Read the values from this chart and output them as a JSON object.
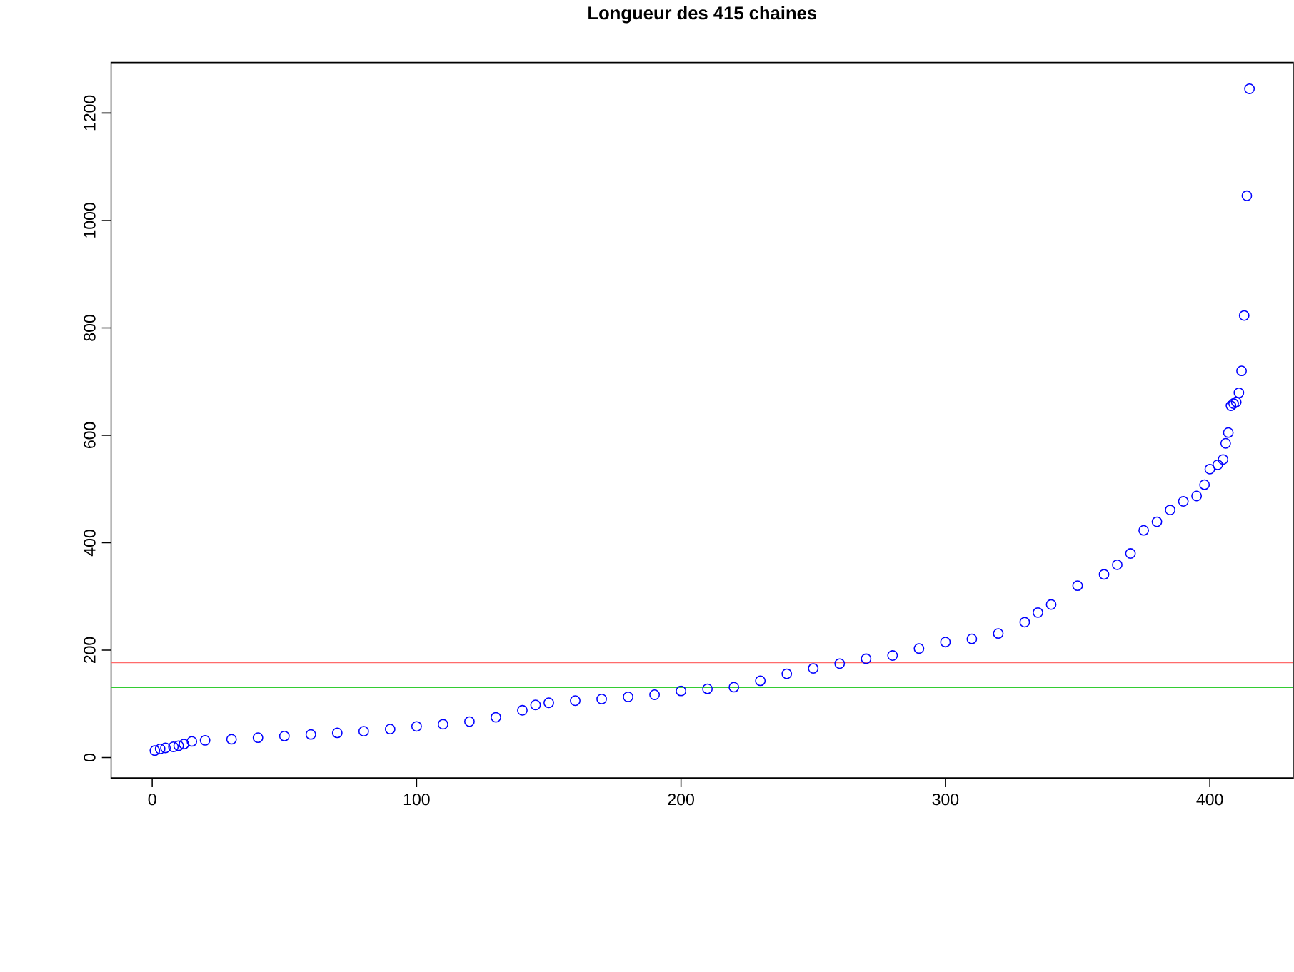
{
  "chart_data": {
    "type": "scatter",
    "title": "Longueur des 415 chaines",
    "x": [
      1,
      3,
      5,
      8,
      10,
      12,
      15,
      20,
      30,
      40,
      50,
      60,
      70,
      80,
      90,
      100,
      110,
      120,
      130,
      140,
      145,
      150,
      160,
      170,
      180,
      190,
      200,
      210,
      220,
      230,
      240,
      250,
      260,
      270,
      280,
      290,
      300,
      310,
      320,
      330,
      335,
      340,
      350,
      360,
      365,
      370,
      375,
      380,
      385,
      390,
      395,
      398,
      400,
      403,
      405,
      406,
      407,
      408,
      409,
      410,
      411,
      412,
      413,
      414,
      415
    ],
    "values": [
      13,
      16,
      18,
      20,
      22,
      25,
      30,
      32,
      34,
      37,
      40,
      43,
      46,
      49,
      53,
      58,
      62,
      67,
      75,
      88,
      98,
      102,
      106,
      109,
      113,
      117,
      124,
      128,
      131,
      143,
      156,
      166,
      175,
      184,
      190,
      203,
      215,
      221,
      231,
      252,
      270,
      285,
      320,
      341,
      359,
      380,
      423,
      439,
      461,
      477,
      487,
      508,
      537,
      545,
      555,
      585,
      605,
      655,
      659,
      662,
      679,
      720,
      823,
      1046,
      1245
    ],
    "color": "#0000ff",
    "marker": "circle",
    "xlim": [
      -15.56,
      431.56
    ],
    "ylim": [
      -38,
      1294
    ],
    "xticks": [
      0,
      100,
      200,
      300,
      400
    ],
    "yticks": [
      0,
      200,
      400,
      600,
      800,
      1000,
      1200
    ],
    "ref_lines": [
      {
        "axis": "y",
        "value": 177,
        "color": "#ff6b6b"
      },
      {
        "axis": "y",
        "value": 131,
        "color": "#33cc33"
      }
    ]
  }
}
